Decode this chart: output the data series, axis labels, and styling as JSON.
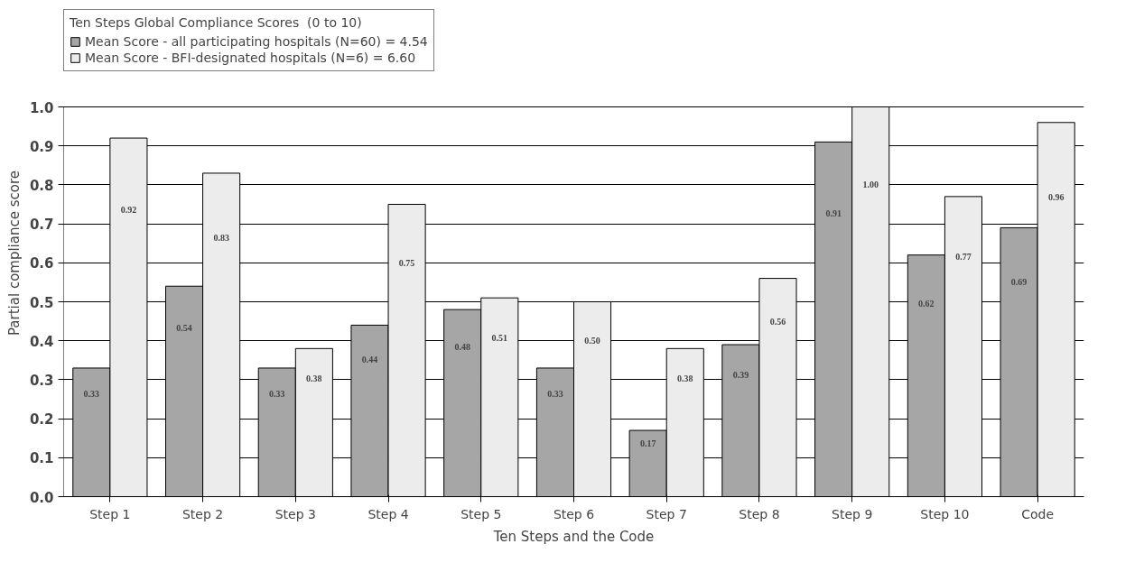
{
  "chart_data": {
    "type": "bar",
    "legend_title": "Ten Steps Global Compliance Scores  (0 to 10)",
    "xlabel": "Ten Steps and the Code",
    "ylabel": "Partial compliance score",
    "categories": [
      "Step 1",
      "Step 2",
      "Step 3",
      "Step 4",
      "Step 5",
      "Step 6",
      "Step 7",
      "Step 8",
      "Step 9",
      "Step 10",
      "Code"
    ],
    "series": [
      {
        "name": "Mean Score - all participating hospitals (N=60) = 4.54",
        "color": "#a6a6a6",
        "values": [
          0.33,
          0.54,
          0.33,
          0.44,
          0.48,
          0.33,
          0.17,
          0.39,
          0.91,
          0.62,
          0.69
        ],
        "value_labels": [
          "0.33",
          "0.54",
          "0.33",
          "0.44",
          "0.48",
          "0.33",
          "0.17",
          "0.39",
          "0.91",
          "0.62",
          "0.69"
        ]
      },
      {
        "name": "Mean Score - BFI-designated hospitals (N=6) = 6.60",
        "color": "#ececec",
        "values": [
          0.92,
          0.83,
          0.38,
          0.75,
          0.51,
          0.5,
          0.38,
          0.56,
          1.0,
          0.77,
          0.96
        ],
        "value_labels": [
          "0.92",
          "0.83",
          "0.38",
          "0.75",
          "0.51",
          "0.50",
          "0.38",
          "0.56",
          "1.00",
          "0.77",
          "0.96"
        ]
      }
    ],
    "ylim": [
      0,
      1
    ],
    "yticks": [
      {
        "value": 0,
        "label": "0.0"
      },
      {
        "value": 0.1,
        "label": "0.1"
      },
      {
        "value": 0.2,
        "label": "0.2"
      },
      {
        "value": 0.3,
        "label": "0.3"
      },
      {
        "value": 0.4,
        "label": "0.4"
      },
      {
        "value": 0.5,
        "label": "0.5"
      },
      {
        "value": 0.6,
        "label": "0.6"
      },
      {
        "value": 0.7,
        "label": "0.7"
      },
      {
        "value": 0.8,
        "label": "0.8"
      },
      {
        "value": 0.9,
        "label": "0.9"
      },
      {
        "value": 1,
        "label": "1.0"
      }
    ],
    "grid": "y",
    "legend": "top left"
  }
}
